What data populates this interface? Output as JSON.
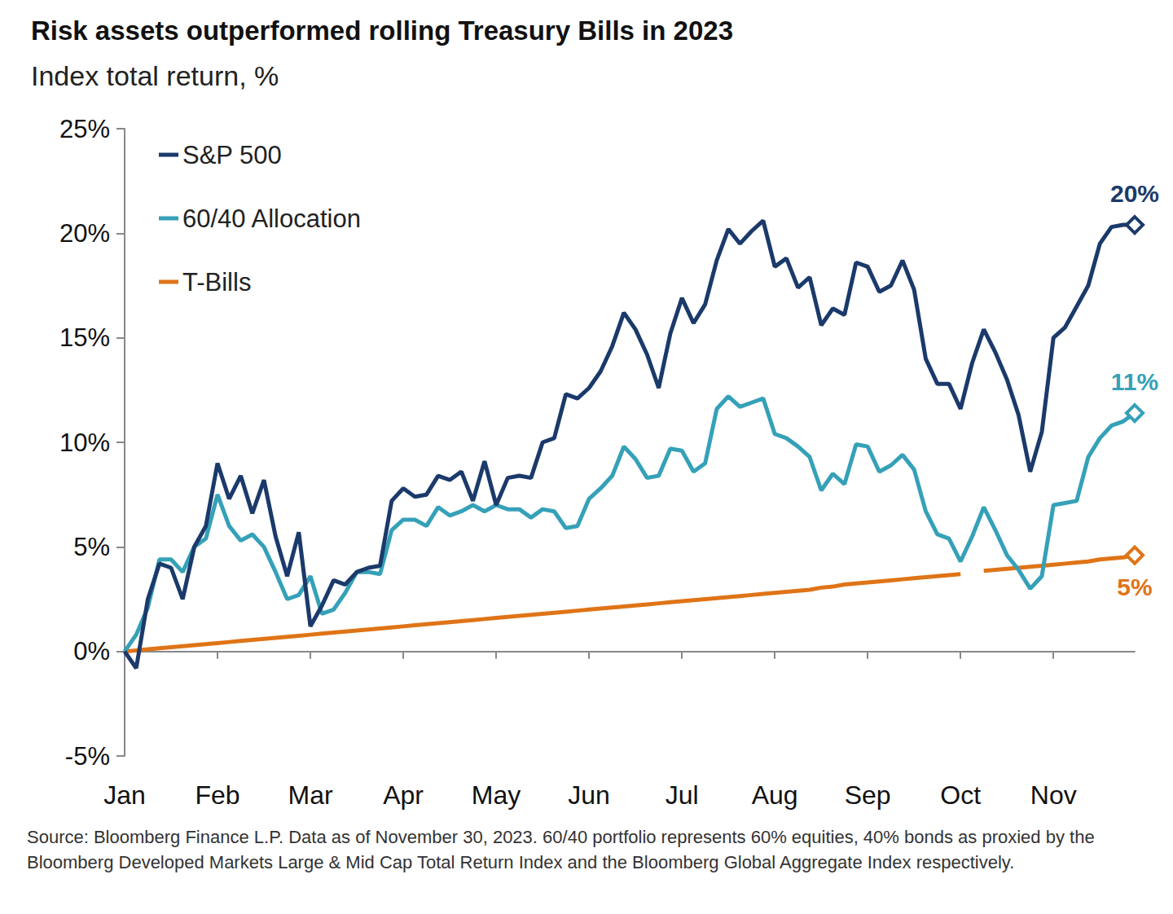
{
  "chart_data": {
    "type": "line",
    "title": "Risk assets outperformed rolling Treasury Bills in 2023",
    "subtitle": "Index total return, %",
    "footnote": "Source: Bloomberg Finance L.P. Data as of November 30, 2023. 60/40 portfolio represents 60% equities, 40% bonds as proxied by the Bloomberg Developed Markets Large & Mid Cap Total Return Index and the Bloomberg Global Aggregate Index respectively.",
    "categories": [
      "Jan",
      null,
      null,
      null,
      null,
      null,
      null,
      null,
      "Feb",
      null,
      null,
      null,
      null,
      null,
      null,
      null,
      "Mar",
      null,
      null,
      null,
      null,
      null,
      null,
      null,
      "Apr",
      null,
      null,
      null,
      null,
      null,
      null,
      null,
      "May",
      null,
      null,
      null,
      null,
      null,
      null,
      null,
      "Jun",
      null,
      null,
      null,
      null,
      null,
      null,
      null,
      "Jul",
      null,
      null,
      null,
      null,
      null,
      null,
      null,
      "Aug",
      null,
      null,
      null,
      null,
      null,
      null,
      null,
      "Sep",
      null,
      null,
      null,
      null,
      null,
      null,
      null,
      "Oct",
      null,
      null,
      null,
      null,
      null,
      null,
      null,
      "Nov",
      null,
      null,
      null,
      null,
      null,
      null,
      null
    ],
    "series": [
      {
        "name": "S&P 500",
        "color": "#1b3a6b",
        "marker": "diamond",
        "values": [
          0,
          -0.8,
          2.5,
          4.2,
          4.0,
          2.5,
          5.0,
          6.0,
          9.0,
          7.3,
          8.4,
          6.6,
          8.2,
          5.5,
          3.6,
          5.7,
          1.2,
          2.2,
          3.4,
          3.2,
          3.8,
          4.0,
          4.1,
          7.2,
          7.8,
          7.4,
          7.5,
          8.4,
          8.2,
          8.6,
          7.2,
          9.1,
          7.0,
          8.3,
          8.4,
          8.3,
          10.0,
          10.2,
          12.3,
          12.1,
          12.6,
          13.4,
          14.6,
          16.2,
          15.4,
          14.2,
          12.6,
          15.2,
          16.9,
          15.7,
          16.6,
          18.7,
          20.2,
          19.5,
          20.1,
          20.6,
          18.4,
          18.8,
          17.4,
          17.9,
          15.6,
          16.4,
          16.1,
          18.6,
          18.4,
          17.2,
          17.5,
          18.7,
          17.3,
          14.0,
          12.8,
          12.8,
          11.6,
          13.8,
          15.4,
          14.3,
          13.0,
          11.3,
          8.6,
          10.5,
          15.0,
          15.5,
          16.5,
          17.5,
          19.5,
          20.3,
          20.4,
          20.4
        ],
        "value_labels": [
          null,
          null,
          null,
          null,
          null,
          null,
          null,
          null,
          null,
          null,
          null,
          null,
          null,
          null,
          null,
          null,
          null,
          null,
          null,
          null,
          null,
          null,
          null,
          null,
          null,
          null,
          null,
          null,
          null,
          null,
          null,
          null,
          null,
          null,
          null,
          null,
          null,
          null,
          null,
          null,
          null,
          null,
          null,
          null,
          null,
          null,
          null,
          null,
          null,
          null,
          null,
          null,
          null,
          null,
          null,
          null,
          null,
          null,
          null,
          null,
          null,
          null,
          null,
          null,
          null,
          null,
          null,
          null,
          null,
          null,
          null,
          null,
          null,
          null,
          null,
          null,
          null,
          null,
          null,
          null,
          null,
          null,
          null,
          null,
          null,
          null,
          null,
          "20%"
        ]
      },
      {
        "name": "60/40 Allocation",
        "color": "#35a1b8",
        "marker": "diamond",
        "values": [
          0,
          0.8,
          2.1,
          4.4,
          4.4,
          3.8,
          5.0,
          5.4,
          7.5,
          6.0,
          5.3,
          5.6,
          5.0,
          3.8,
          2.5,
          2.7,
          3.6,
          1.8,
          2.0,
          2.8,
          3.8,
          3.8,
          3.7,
          5.8,
          6.3,
          6.3,
          6.0,
          6.9,
          6.5,
          6.7,
          7.0,
          6.7,
          7.0,
          6.8,
          6.8,
          6.4,
          6.8,
          6.7,
          5.9,
          6.0,
          7.3,
          7.8,
          8.4,
          9.8,
          9.2,
          8.3,
          8.4,
          9.7,
          9.6,
          8.6,
          9.0,
          11.6,
          12.2,
          11.7,
          11.9,
          12.1,
          10.4,
          10.2,
          9.8,
          9.3,
          7.7,
          8.5,
          8.0,
          9.9,
          9.8,
          8.6,
          8.9,
          9.4,
          8.7,
          6.7,
          5.6,
          5.4,
          4.3,
          5.5,
          6.9,
          5.8,
          4.6,
          3.9,
          3.0,
          3.6,
          7.0,
          7.1,
          7.2,
          9.3,
          10.2,
          10.8,
          11.0,
          11.4
        ],
        "value_labels": [
          null,
          null,
          null,
          null,
          null,
          null,
          null,
          null,
          null,
          null,
          null,
          null,
          null,
          null,
          null,
          null,
          null,
          null,
          null,
          null,
          null,
          null,
          null,
          null,
          null,
          null,
          null,
          null,
          null,
          null,
          null,
          null,
          null,
          null,
          null,
          null,
          null,
          null,
          null,
          null,
          null,
          null,
          null,
          null,
          null,
          null,
          null,
          null,
          null,
          null,
          null,
          null,
          null,
          null,
          null,
          null,
          null,
          null,
          null,
          null,
          null,
          null,
          null,
          null,
          null,
          null,
          null,
          null,
          null,
          null,
          null,
          null,
          null,
          null,
          null,
          null,
          null,
          null,
          null,
          null,
          null,
          null,
          null,
          null,
          null,
          null,
          null,
          "11%"
        ]
      },
      {
        "name": "T-Bills",
        "color": "#df7417",
        "marker": "diamond",
        "values": [
          0,
          0.05,
          0.1,
          0.15,
          0.2,
          0.25,
          0.3,
          0.35,
          0.4,
          0.45,
          0.5,
          0.55,
          0.6,
          0.65,
          0.7,
          0.75,
          0.8,
          0.85,
          0.9,
          0.95,
          1.0,
          1.05,
          1.1,
          1.15,
          1.2,
          1.25,
          1.3,
          1.35,
          1.4,
          1.45,
          1.5,
          1.55,
          1.6,
          1.65,
          1.7,
          1.75,
          1.8,
          1.85,
          1.9,
          1.95,
          2.0,
          2.05,
          2.1,
          2.15,
          2.2,
          2.25,
          2.3,
          2.35,
          2.4,
          2.45,
          2.5,
          2.55,
          2.6,
          2.65,
          2.7,
          2.75,
          2.8,
          2.85,
          2.9,
          2.95,
          3.05,
          3.1,
          3.2,
          3.25,
          3.3,
          3.35,
          3.4,
          3.45,
          3.5,
          3.55,
          3.6,
          3.65,
          3.7,
          null,
          3.85,
          3.9,
          3.95,
          4.0,
          4.05,
          4.1,
          4.15,
          4.2,
          4.25,
          4.3,
          4.4,
          4.45,
          4.5,
          4.6
        ],
        "value_labels": [
          null,
          null,
          null,
          null,
          null,
          null,
          null,
          null,
          null,
          null,
          null,
          null,
          null,
          null,
          null,
          null,
          null,
          null,
          null,
          null,
          null,
          null,
          null,
          null,
          null,
          null,
          null,
          null,
          null,
          null,
          null,
          null,
          null,
          null,
          null,
          null,
          null,
          null,
          null,
          null,
          null,
          null,
          null,
          null,
          null,
          null,
          null,
          null,
          null,
          null,
          null,
          null,
          null,
          null,
          null,
          null,
          null,
          null,
          null,
          null,
          null,
          null,
          null,
          null,
          null,
          null,
          null,
          null,
          null,
          null,
          null,
          null,
          null,
          null,
          null,
          null,
          null,
          null,
          null,
          null,
          null,
          null,
          null,
          null,
          null,
          null,
          null,
          "5%"
        ]
      }
    ],
    "ylim": [
      -5,
      25
    ],
    "yticks": [
      {
        "value": -5,
        "label": "-5%"
      },
      {
        "value": 0,
        "label": "0%"
      },
      {
        "value": 5,
        "label": "5%"
      },
      {
        "value": 10,
        "label": "10%"
      },
      {
        "value": 15,
        "label": "15%"
      },
      {
        "value": 20,
        "label": "20%"
      },
      {
        "value": 25,
        "label": "25%"
      }
    ],
    "grid": false,
    "legend": "upper left"
  }
}
